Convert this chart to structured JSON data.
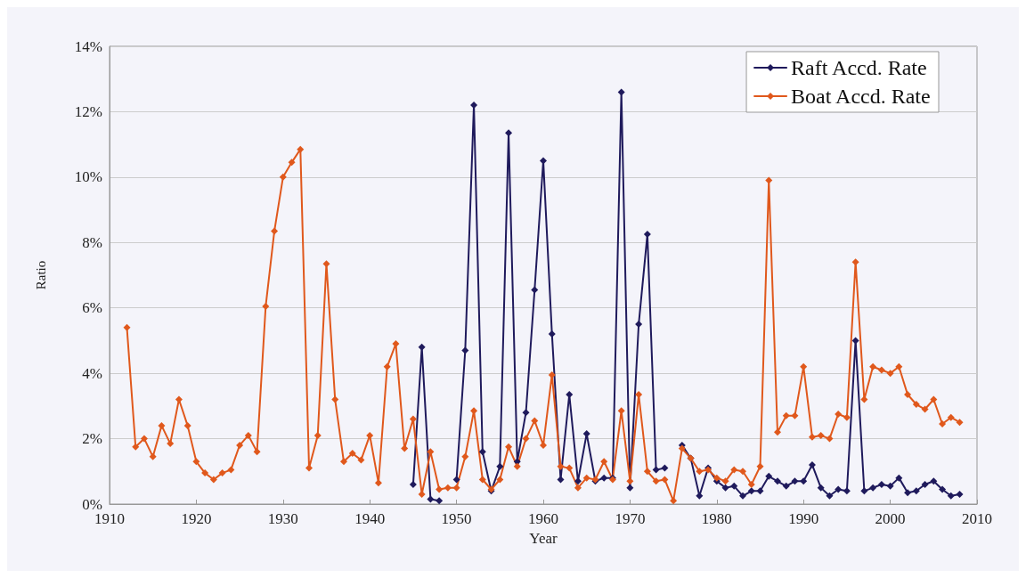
{
  "chart_data": {
    "type": "line",
    "xlabel": "Year",
    "ylabel": "Ratio",
    "x": [
      1912,
      1913,
      1914,
      1915,
      1916,
      1917,
      1918,
      1919,
      1920,
      1921,
      1922,
      1923,
      1924,
      1925,
      1926,
      1927,
      1928,
      1929,
      1930,
      1931,
      1932,
      1933,
      1934,
      1935,
      1936,
      1937,
      1938,
      1939,
      1940,
      1941,
      1942,
      1943,
      1944,
      1945,
      1946,
      1947,
      1948,
      1949,
      1950,
      1951,
      1952,
      1953,
      1954,
      1955,
      1956,
      1957,
      1958,
      1959,
      1960,
      1961,
      1962,
      1963,
      1964,
      1965,
      1966,
      1967,
      1968,
      1969,
      1970,
      1971,
      1972,
      1973,
      1974,
      1975,
      1976,
      1977,
      1978,
      1979,
      1980,
      1981,
      1982,
      1983,
      1984,
      1985,
      1986,
      1987,
      1988,
      1989,
      1990,
      1991,
      1992,
      1993,
      1994,
      1995,
      1996,
      1997,
      1998,
      1999,
      2000,
      2001,
      2002,
      2003,
      2004,
      2005,
      2006,
      2007,
      2008
    ],
    "series": [
      {
        "name": "Raft Accd. Rate",
        "color": "#1f1a5c",
        "values": [
          null,
          null,
          null,
          null,
          null,
          null,
          null,
          null,
          null,
          null,
          null,
          null,
          null,
          null,
          null,
          null,
          null,
          null,
          null,
          null,
          null,
          null,
          null,
          null,
          null,
          null,
          null,
          null,
          null,
          null,
          null,
          null,
          null,
          0.6,
          4.8,
          0.15,
          0.1,
          null,
          0.75,
          4.7,
          12.2,
          1.6,
          0.4,
          1.15,
          11.35,
          1.3,
          2.8,
          6.55,
          10.5,
          5.2,
          0.75,
          3.35,
          0.7,
          2.15,
          0.7,
          0.8,
          0.8,
          12.6,
          0.5,
          5.5,
          8.25,
          1.05,
          1.1,
          null,
          1.8,
          1.4,
          0.25,
          1.1,
          0.7,
          0.5,
          0.55,
          0.25,
          0.4,
          0.4,
          0.85,
          0.7,
          0.55,
          0.7,
          0.7,
          1.2,
          0.5,
          0.25,
          0.45,
          0.4,
          5.0,
          0.4,
          0.5,
          0.6,
          0.55,
          0.8,
          0.35,
          0.4,
          0.6,
          0.7,
          0.45,
          0.25,
          0.3
        ]
      },
      {
        "name": "Boat Accd. Rate",
        "color": "#e0581c",
        "values": [
          5.4,
          1.75,
          2.0,
          1.45,
          2.4,
          1.85,
          3.2,
          2.4,
          1.3,
          0.95,
          0.75,
          0.95,
          1.05,
          1.8,
          2.1,
          1.6,
          6.05,
          8.35,
          10.0,
          10.45,
          10.85,
          1.1,
          2.1,
          7.35,
          3.2,
          1.3,
          1.55,
          1.35,
          2.1,
          0.65,
          4.2,
          4.9,
          1.7,
          2.6,
          0.3,
          1.6,
          0.45,
          0.5,
          0.5,
          1.45,
          2.85,
          0.75,
          0.45,
          0.75,
          1.75,
          1.15,
          2.0,
          2.55,
          1.8,
          3.95,
          1.15,
          1.1,
          0.5,
          0.8,
          0.75,
          1.3,
          0.75,
          2.85,
          0.7,
          3.35,
          1.0,
          0.7,
          0.75,
          0.1,
          1.7,
          1.4,
          1.0,
          1.05,
          0.8,
          0.7,
          1.05,
          1.0,
          0.6,
          1.15,
          9.9,
          2.2,
          2.7,
          2.7,
          4.2,
          2.05,
          2.1,
          2.0,
          2.75,
          2.65,
          7.4,
          3.2,
          4.2,
          4.1,
          4.0,
          4.2,
          3.35,
          3.05,
          2.9,
          3.2,
          2.45,
          2.65,
          2.5
        ]
      }
    ],
    "xlim": [
      1910,
      2010
    ],
    "xticks": [
      1910,
      1920,
      1930,
      1940,
      1950,
      1960,
      1970,
      1980,
      1990,
      2000,
      2010
    ],
    "ylim": [
      0,
      14
    ],
    "yticks": [
      {
        "value": 0,
        "label": "0%"
      },
      {
        "value": 2,
        "label": "2%"
      },
      {
        "value": 4,
        "label": "4%"
      },
      {
        "value": 6,
        "label": "6%"
      },
      {
        "value": 8,
        "label": "8%"
      },
      {
        "value": 10,
        "label": "10%"
      },
      {
        "value": 12,
        "label": "12%"
      },
      {
        "value": 14,
        "label": "14%"
      }
    ],
    "grid": "y",
    "legend": "top right",
    "marker": "diamond",
    "line_style": "solid"
  }
}
